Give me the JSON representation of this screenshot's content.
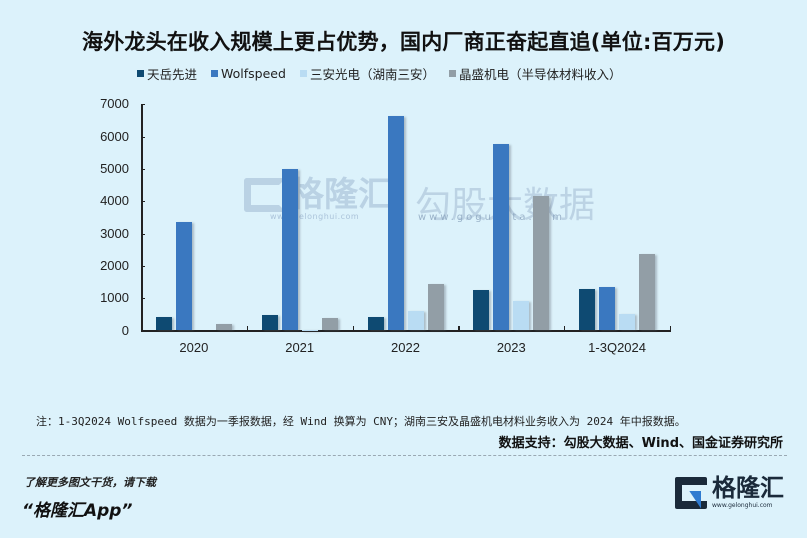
{
  "title": "海外龙头在收入规模上更占优势，国内厂商正奋起直追(单位:百万元)",
  "legend": [
    {
      "label": "天岳先进",
      "color": "#0e4a72"
    },
    {
      "label": "Wolfspeed",
      "color": "#3a78c0"
    },
    {
      "label": "三安光电（湖南三安）",
      "color": "#b9dcf3"
    },
    {
      "label": "晶盛机电（半导体材料收入）",
      "color": "#929ea6"
    }
  ],
  "y_ticks": [
    "7000",
    "6000",
    "5000",
    "4000",
    "3000",
    "2000",
    "1000",
    "0"
  ],
  "x_labels": [
    "2020",
    "2021",
    "2022",
    "2023",
    "1-3Q2024"
  ],
  "watermarks": {
    "gelonghui": "格隆汇",
    "gelonghui_url": "www.gelonghui.com",
    "gogudata": "勾股大数据",
    "gogudata_url": "www.gogudata.com"
  },
  "note": "注：1-3Q2024 Wolfspeed 数据为一季报数据，经 Wind 换算为 CNY；湖南三安及晶盛机电材料业务收入为 2024 年中报数据。",
  "source": "数据支持：勾股大数据、Wind、国金证券研究所",
  "promo": {
    "line1": "了解更多图文干货，请下载",
    "line2": "“格隆汇App”"
  },
  "logo": {
    "name": "格隆汇",
    "url": "www.gelonghui.com"
  },
  "chart_data": {
    "type": "bar",
    "title": "海外龙头在收入规模上更占优势，国内厂商正奋起直追(单位:百万元)",
    "xlabel": "",
    "ylabel": "",
    "ylim": [
      0,
      7000
    ],
    "yticks": [
      0,
      1000,
      2000,
      3000,
      4000,
      5000,
      6000,
      7000
    ],
    "grid": false,
    "legend_position": "top",
    "categories": [
      "2020",
      "2021",
      "2022",
      "2023",
      "1-3Q2024"
    ],
    "series": [
      {
        "name": "天岳先进",
        "color": "#0e4a72",
        "values": [
          430,
          490,
          410,
          1250,
          1270
        ]
      },
      {
        "name": "Wolfspeed",
        "color": "#3a78c0",
        "values": [
          3370,
          5000,
          6640,
          5770,
          1360
        ]
      },
      {
        "name": "三安光电（湖南三安）",
        "color": "#b9dcf3",
        "values": [
          0,
          30,
          610,
          920,
          500
        ]
      },
      {
        "name": "晶盛机电（半导体材料收入）",
        "color": "#929ea6",
        "values": [
          200,
          400,
          1440,
          4170,
          2370
        ]
      }
    ],
    "annotations": [
      "注：1-3Q2024 Wolfspeed 数据为一季报数据，经 Wind 换算为 CNY；湖南三安及晶盛机电材料业务收入为 2024 年中报数据。",
      "数据支持：勾股大数据、Wind、国金证券研究所"
    ]
  }
}
